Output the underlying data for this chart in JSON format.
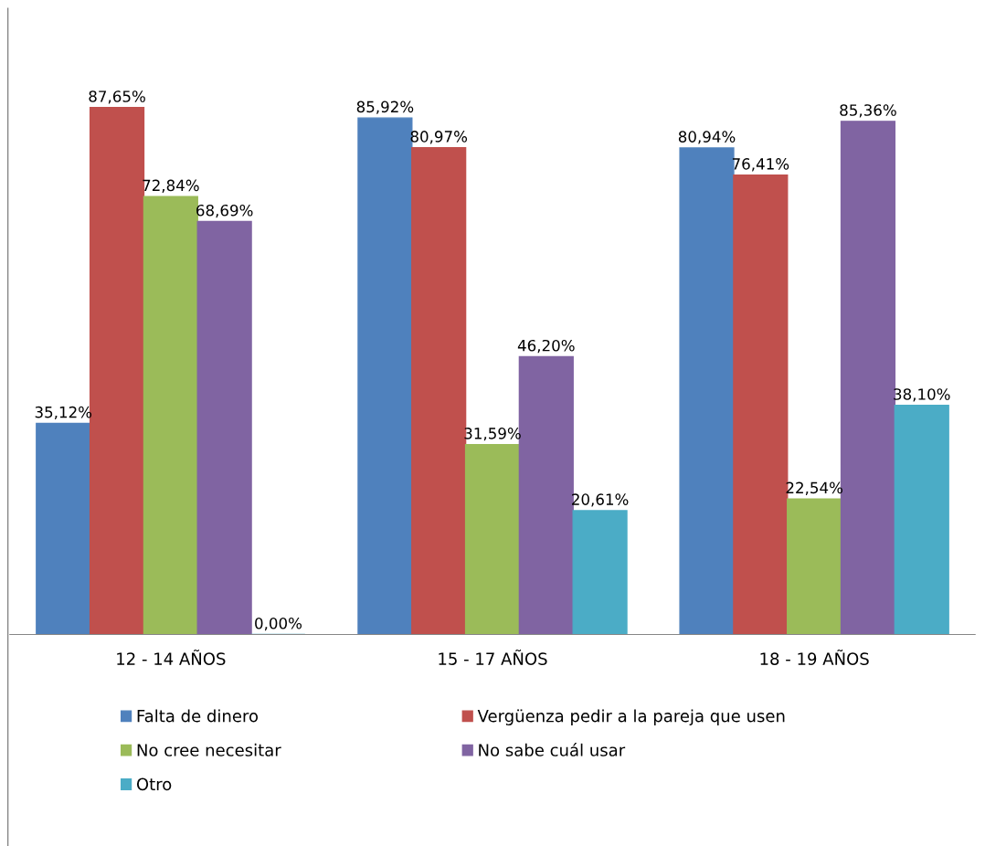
{
  "chart_data": {
    "type": "bar",
    "categories": [
      "12 - 14 AÑOS",
      "15 - 17 AÑOS",
      "18 - 19 AÑOS"
    ],
    "series": [
      {
        "name": "Falta de dinero",
        "color": "#4f81bd",
        "values": [
          35.12,
          85.92,
          80.94
        ],
        "value_labels": [
          "35,12%",
          "85,92%",
          "80,94%"
        ]
      },
      {
        "name": "Vergüenza pedir a la pareja que usen",
        "color": "#c0504d",
        "values": [
          87.65,
          80.97,
          76.41
        ],
        "value_labels": [
          "87,65%",
          "80,97%",
          "76,41%"
        ]
      },
      {
        "name": "No cree necesitar",
        "color": "#9bbb59",
        "values": [
          72.84,
          31.59,
          22.54
        ],
        "value_labels": [
          "72,84%",
          "31,59%",
          "22,54%"
        ]
      },
      {
        "name": "No sabe cuál usar",
        "color": "#8064a2",
        "values": [
          68.69,
          46.2,
          85.36
        ],
        "value_labels": [
          "68,69%",
          "46,20%",
          "85,36%"
        ]
      },
      {
        "name": "Otro",
        "color": "#4bacc6",
        "values": [
          0.0,
          20.61,
          38.1
        ],
        "value_labels": [
          "0,00%",
          "20,61%",
          "38,10%"
        ]
      }
    ],
    "legend": "bottom",
    "grid": false
  }
}
